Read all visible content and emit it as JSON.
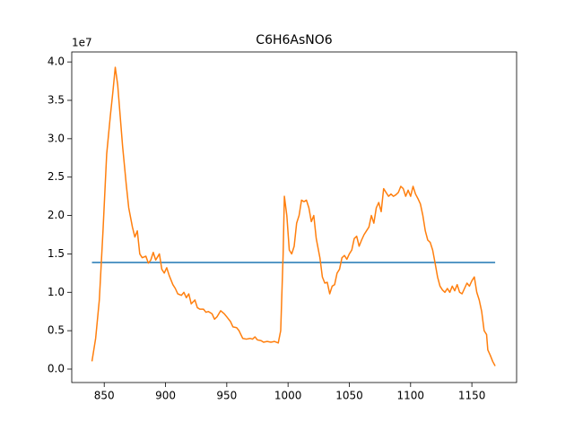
{
  "chart_data": {
    "type": "line",
    "title": "C6H6AsNO6",
    "y_offset_label": "1e7",
    "xlim": [
      823.5,
      1186.5
    ],
    "xticks": [
      850,
      900,
      950,
      1000,
      1050,
      1100,
      1150
    ],
    "ylim": [
      -0.175,
      4.13
    ],
    "yticks": [
      {
        "value": 0,
        "label": "0.0"
      },
      0.5,
      {
        "value": 1,
        "label": "1.0"
      },
      1.5,
      {
        "value": 2,
        "label": "2.0"
      },
      2.5,
      {
        "value": 3,
        "label": "3.0"
      },
      3.5,
      {
        "value": 4,
        "label": "4.0"
      }
    ],
    "series": [
      {
        "color": "#1f77b4",
        "x": [
          840,
          1169
        ],
        "values": [
          1.388,
          1.388
        ]
      },
      {
        "color": "#ff7f0e",
        "x": [
          840,
          843,
          846,
          849,
          852,
          855,
          857,
          859,
          861,
          863,
          865,
          868,
          870,
          873,
          875,
          877,
          879,
          881,
          884,
          886,
          888,
          890,
          892,
          895,
          897,
          899,
          901,
          903,
          906,
          908,
          910,
          913,
          915,
          917,
          919,
          921,
          924,
          926,
          928,
          931,
          933,
          935,
          938,
          940,
          942,
          945,
          948,
          950,
          953,
          955,
          958,
          960,
          963,
          966,
          969,
          971,
          973,
          975,
          978,
          980,
          983,
          986,
          989,
          992,
          994,
          996,
          997,
          999,
          1001,
          1003,
          1005,
          1007,
          1009,
          1011,
          1013,
          1015,
          1017,
          1019,
          1021,
          1023,
          1026,
          1028,
          1030,
          1032,
          1034,
          1036,
          1038,
          1040,
          1042,
          1044,
          1046,
          1048,
          1050,
          1052,
          1054,
          1056,
          1058,
          1060,
          1062,
          1064,
          1066,
          1068,
          1070,
          1072,
          1074,
          1076,
          1078,
          1080,
          1082,
          1084,
          1086,
          1088,
          1090,
          1092,
          1094,
          1096,
          1098,
          1100,
          1102,
          1104,
          1106,
          1108,
          1110,
          1112,
          1114,
          1116,
          1118,
          1120,
          1122,
          1124,
          1126,
          1128,
          1130,
          1132,
          1134,
          1136,
          1138,
          1140,
          1142,
          1144,
          1146,
          1148,
          1150,
          1152,
          1154,
          1156,
          1158,
          1160,
          1162,
          1163,
          1165,
          1167,
          1169
        ],
        "values": [
          0.1,
          0.4,
          0.9,
          1.8,
          2.8,
          3.3,
          3.6,
          3.93,
          3.7,
          3.3,
          2.9,
          2.4,
          2.1,
          1.85,
          1.72,
          1.8,
          1.5,
          1.45,
          1.47,
          1.38,
          1.42,
          1.52,
          1.42,
          1.5,
          1.3,
          1.25,
          1.32,
          1.22,
          1.1,
          1.05,
          0.98,
          0.96,
          1.0,
          0.93,
          0.98,
          0.85,
          0.9,
          0.8,
          0.78,
          0.78,
          0.74,
          0.75,
          0.72,
          0.65,
          0.68,
          0.76,
          0.72,
          0.68,
          0.62,
          0.55,
          0.54,
          0.5,
          0.4,
          0.39,
          0.4,
          0.39,
          0.42,
          0.38,
          0.37,
          0.35,
          0.36,
          0.35,
          0.36,
          0.34,
          0.5,
          1.5,
          2.25,
          2.0,
          1.55,
          1.5,
          1.6,
          1.9,
          2.0,
          2.2,
          2.18,
          2.2,
          2.1,
          1.92,
          2.0,
          1.7,
          1.45,
          1.2,
          1.12,
          1.13,
          0.98,
          1.08,
          1.1,
          1.25,
          1.3,
          1.45,
          1.48,
          1.43,
          1.5,
          1.55,
          1.7,
          1.73,
          1.6,
          1.68,
          1.75,
          1.8,
          1.85,
          2.0,
          1.9,
          2.1,
          2.17,
          2.05,
          2.35,
          2.3,
          2.25,
          2.28,
          2.25,
          2.27,
          2.3,
          2.38,
          2.35,
          2.25,
          2.33,
          2.25,
          2.38,
          2.28,
          2.22,
          2.15,
          2.0,
          1.8,
          1.68,
          1.65,
          1.55,
          1.38,
          1.2,
          1.08,
          1.03,
          1.0,
          1.05,
          1.0,
          1.08,
          1.02,
          1.1,
          1.0,
          0.98,
          1.05,
          1.12,
          1.08,
          1.15,
          1.2,
          1.0,
          0.9,
          0.75,
          0.5,
          0.45,
          0.25,
          0.18,
          0.1,
          0.04
        ]
      }
    ]
  }
}
